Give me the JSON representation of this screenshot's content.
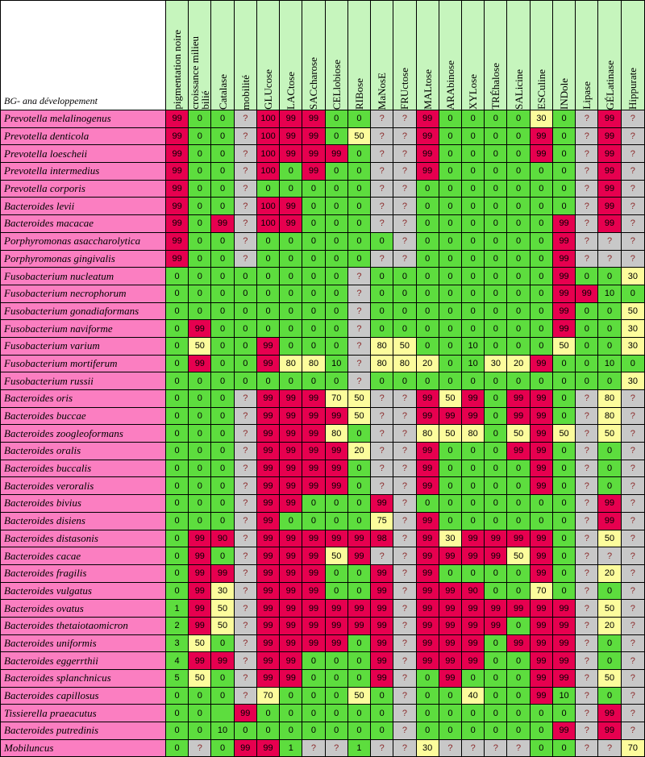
{
  "corner_label": "BG- ana développement",
  "columns": [
    "pigmentation noire",
    "croissance milieu\nbilié",
    "Catalase",
    "mobilité",
    "GLUcose",
    "LACtose",
    "SACcharose",
    "CELlobiose",
    "RIBose",
    "MaNosE",
    "FRUctose",
    "MALtose",
    "ARAbinose",
    "XYLose",
    "TRÉhalose",
    "SALicine",
    "ESCuline",
    "INDole",
    "Lipase",
    "GÉLatinase",
    "Hippurate"
  ],
  "colors": {
    "zero": "#5ddd3e",
    "high": "#e6004f",
    "mid": "#fcfc9c",
    "unknown": "#c8c8c8",
    "name": "#fb7ec1",
    "header": "#c6f5bd"
  },
  "rows": [
    {
      "name": "Prevotella melalinogenus",
      "values": [
        "99",
        "0",
        "0",
        "?",
        "100",
        "99",
        "99",
        "0",
        "0",
        "?",
        "?",
        "99",
        "0",
        "0",
        "0",
        "0",
        "30",
        "0",
        "?",
        "99",
        "?"
      ]
    },
    {
      "name": "Prevotella denticola",
      "values": [
        "99",
        "0",
        "0",
        "?",
        "100",
        "99",
        "99",
        "0",
        "50",
        "?",
        "?",
        "99",
        "0",
        "0",
        "0",
        "0",
        "99",
        "0",
        "?",
        "99",
        "?"
      ]
    },
    {
      "name": "Prevotella loescheii",
      "values": [
        "99",
        "0",
        "0",
        "?",
        "100",
        "99",
        "99",
        "99",
        "0",
        "?",
        "?",
        "99",
        "0",
        "0",
        "0",
        "0",
        "99",
        "0",
        "?",
        "99",
        "?"
      ]
    },
    {
      "name": "Prevotella intermedius",
      "values": [
        "99",
        "0",
        "0",
        "?",
        "100",
        "0",
        "99",
        "0",
        "0",
        "?",
        "?",
        "99",
        "0",
        "0",
        "0",
        "0",
        "0",
        "0",
        "?",
        "99",
        "?"
      ]
    },
    {
      "name": "Prevotella corporis",
      "values": [
        "99",
        "0",
        "0",
        "?",
        "0",
        "0",
        "0",
        "0",
        "0",
        "?",
        "?",
        "0",
        "0",
        "0",
        "0",
        "0",
        "0",
        "0",
        "?",
        "99",
        "?"
      ]
    },
    {
      "name": "Bacteroides levii",
      "values": [
        "99",
        "0",
        "0",
        "?",
        "100",
        "99",
        "0",
        "0",
        "0",
        "?",
        "?",
        "0",
        "0",
        "0",
        "0",
        "0",
        "0",
        "0",
        "?",
        "99",
        "?"
      ]
    },
    {
      "name": "Bacteroides macacae",
      "values": [
        "99",
        "0",
        "99",
        "?",
        "100",
        "99",
        "0",
        "0",
        "0",
        "?",
        "?",
        "0",
        "0",
        "0",
        "0",
        "0",
        "0",
        "99",
        "?",
        "99",
        "?"
      ]
    },
    {
      "name": "Porphyromonas asaccharolytica",
      "values": [
        "99",
        "0",
        "0",
        "?",
        "0",
        "0",
        "0",
        "0",
        "0",
        "0",
        "?",
        "0",
        "0",
        "0",
        "0",
        "0",
        "0",
        "99",
        "?",
        "?",
        "?"
      ]
    },
    {
      "name": "Porphyromonas gingivalis",
      "values": [
        "99",
        "0",
        "0",
        "?",
        "0",
        "0",
        "0",
        "0",
        "0",
        "?",
        "?",
        "0",
        "0",
        "0",
        "0",
        "0",
        "0",
        "99",
        "?",
        "?",
        "?"
      ]
    },
    {
      "name": "Fusobacterium nucleatum",
      "values": [
        "0",
        "0",
        "0",
        "0",
        "0",
        "0",
        "0",
        "0",
        "?",
        "0",
        "0",
        "0",
        "0",
        "0",
        "0",
        "0",
        "0",
        "99",
        "0",
        "0",
        "30"
      ]
    },
    {
      "name": "Fusobacterium necrophorum",
      "values": [
        "0",
        "0",
        "0",
        "0",
        "0",
        "0",
        "0",
        "0",
        "?",
        "0",
        "0",
        "0",
        "0",
        "0",
        "0",
        "0",
        "0",
        "99",
        "99",
        "10",
        "0"
      ]
    },
    {
      "name": "Fusobacterium gonadiaformans",
      "values": [
        "0",
        "0",
        "0",
        "0",
        "0",
        "0",
        "0",
        "0",
        "?",
        "0",
        "0",
        "0",
        "0",
        "0",
        "0",
        "0",
        "0",
        "99",
        "0",
        "0",
        "50"
      ]
    },
    {
      "name": "Fusobacterium naviforme",
      "values": [
        "0",
        "99",
        "0",
        "0",
        "0",
        "0",
        "0",
        "0",
        "?",
        "0",
        "0",
        "0",
        "0",
        "0",
        "0",
        "0",
        "0",
        "99",
        "0",
        "0",
        "30"
      ]
    },
    {
      "name": "Fusobacterium varium",
      "values": [
        "0",
        "50",
        "0",
        "0",
        "99",
        "0",
        "0",
        "0",
        "?",
        "80",
        "50",
        "0",
        "0",
        "10",
        "0",
        "0",
        "0",
        "50",
        "0",
        "0",
        "30"
      ]
    },
    {
      "name": "Fusobacterium mortiferum",
      "values": [
        "0",
        "99",
        "0",
        "0",
        "99",
        "80",
        "80",
        "10",
        "?",
        "80",
        "80",
        "20",
        "0",
        "10",
        "30",
        "20",
        "99",
        "0",
        "0",
        "10",
        "0"
      ]
    },
    {
      "name": "Fusobacterium russii",
      "values": [
        "0",
        "0",
        "0",
        "0",
        "0",
        "0",
        "0",
        "0",
        "?",
        "0",
        "0",
        "0",
        "0",
        "0",
        "0",
        "0",
        "0",
        "0",
        "0",
        "0",
        "30"
      ]
    },
    {
      "name": "Bacteroides oris",
      "values": [
        "0",
        "0",
        "0",
        "?",
        "99",
        "99",
        "99",
        "70",
        "50",
        "?",
        "?",
        "99",
        "50",
        "99",
        "0",
        "99",
        "99",
        "0",
        "?",
        "80",
        "?"
      ]
    },
    {
      "name": "Bacteroides buccae",
      "values": [
        "0",
        "0",
        "0",
        "?",
        "99",
        "99",
        "99",
        "99",
        "50",
        "?",
        "?",
        "99",
        "99",
        "99",
        "0",
        "99",
        "99",
        "0",
        "?",
        "80",
        "?"
      ]
    },
    {
      "name": "Bacteroides zoogleoformans",
      "values": [
        "0",
        "0",
        "0",
        "?",
        "99",
        "99",
        "99",
        "80",
        "0",
        "?",
        "?",
        "80",
        "50",
        "80",
        "0",
        "50",
        "99",
        "50",
        "?",
        "50",
        "?"
      ]
    },
    {
      "name": "Bacteroides oralis",
      "values": [
        "0",
        "0",
        "0",
        "?",
        "99",
        "99",
        "99",
        "99",
        "20",
        "?",
        "?",
        "99",
        "0",
        "0",
        "0",
        "99",
        "99",
        "0",
        "?",
        "0",
        "?"
      ]
    },
    {
      "name": "Bacteroides buccalis",
      "values": [
        "0",
        "0",
        "0",
        "?",
        "99",
        "99",
        "99",
        "99",
        "0",
        "?",
        "?",
        "99",
        "0",
        "0",
        "0",
        "0",
        "99",
        "0",
        "?",
        "0",
        "?"
      ]
    },
    {
      "name": "Bacteroides veroralis",
      "values": [
        "0",
        "0",
        "0",
        "?",
        "99",
        "99",
        "99",
        "99",
        "0",
        "?",
        "?",
        "99",
        "0",
        "0",
        "0",
        "0",
        "99",
        "0",
        "?",
        "0",
        "?"
      ]
    },
    {
      "name": "Bacteroides bivius",
      "values": [
        "0",
        "0",
        "0",
        "?",
        "99",
        "99",
        "0",
        "0",
        "0",
        "99",
        "?",
        "0",
        "0",
        "0",
        "0",
        "0",
        "0",
        "0",
        "?",
        "99",
        "?"
      ]
    },
    {
      "name": "Bacteroides disiens",
      "values": [
        "0",
        "0",
        "0",
        "?",
        "99",
        "0",
        "0",
        "0",
        "0",
        "75",
        "?",
        "99",
        "0",
        "0",
        "0",
        "0",
        "0",
        "0",
        "?",
        "99",
        "?"
      ]
    },
    {
      "name": "Bacteroides distasonis",
      "values": [
        "0",
        "99",
        "90",
        "?",
        "99",
        "99",
        "99",
        "99",
        "99",
        "98",
        "?",
        "99",
        "30",
        "99",
        "99",
        "99",
        "99",
        "0",
        "?",
        "50",
        "?"
      ]
    },
    {
      "name": "Bacteroides cacae",
      "values": [
        "0",
        "99",
        "0",
        "?",
        "99",
        "99",
        "99",
        "50",
        "99",
        "?",
        "?",
        "99",
        "99",
        "99",
        "99",
        "50",
        "99",
        "0",
        "?",
        "?",
        "?"
      ]
    },
    {
      "name": "Bacteroides fragilis",
      "values": [
        "0",
        "99",
        "99",
        "?",
        "99",
        "99",
        "99",
        "0",
        "0",
        "99",
        "?",
        "99",
        "0",
        "0",
        "0",
        "0",
        "99",
        "0",
        "?",
        "20",
        "?"
      ]
    },
    {
      "name": "Bacteroides vulgatus",
      "values": [
        "0",
        "99",
        "30",
        "?",
        "99",
        "99",
        "99",
        "0",
        "0",
        "99",
        "?",
        "99",
        "99",
        "90",
        "0",
        "0",
        "70",
        "0",
        "?",
        "0",
        "?"
      ]
    },
    {
      "name": "Bacteroides ovatus",
      "values": [
        "1",
        "99",
        "50",
        "?",
        "99",
        "99",
        "99",
        "99",
        "99",
        "99",
        "?",
        "99",
        "99",
        "99",
        "99",
        "99",
        "99",
        "99",
        "?",
        "50",
        "?"
      ]
    },
    {
      "name": "Bacteroides thetaiotaomicron",
      "values": [
        "2",
        "99",
        "50",
        "?",
        "99",
        "99",
        "99",
        "99",
        "99",
        "99",
        "?",
        "99",
        "99",
        "99",
        "99",
        "0",
        "99",
        "99",
        "?",
        "20",
        "?"
      ]
    },
    {
      "name": "Bacteroides uniformis",
      "values": [
        "3",
        "50",
        "0",
        "?",
        "99",
        "99",
        "99",
        "99",
        "0",
        "99",
        "?",
        "99",
        "99",
        "99",
        "0",
        "99",
        "99",
        "99",
        "?",
        "0",
        "?"
      ]
    },
    {
      "name": "Bacteroides eggerrthii",
      "values": [
        "4",
        "99",
        "99",
        "?",
        "99",
        "99",
        "0",
        "0",
        "0",
        "99",
        "?",
        "99",
        "99",
        "99",
        "0",
        "0",
        "99",
        "99",
        "?",
        "0",
        "?"
      ]
    },
    {
      "name": "Bacteroides splanchnicus",
      "values": [
        "5",
        "50",
        "0",
        "?",
        "99",
        "99",
        "0",
        "0",
        "0",
        "99",
        "?",
        "0",
        "99",
        "0",
        "0",
        "0",
        "99",
        "99",
        "?",
        "50",
        "?"
      ]
    },
    {
      "name": "Bacteroides capillosus",
      "values": [
        "0",
        "0",
        "0",
        "?",
        "70",
        "0",
        "0",
        "0",
        "50",
        "0",
        "?",
        "0",
        "0",
        "40",
        "0",
        "0",
        "99",
        "10",
        "?",
        "0",
        "?"
      ]
    },
    {
      "name": "Tissierella praeacutus",
      "values": [
        "0",
        "0",
        "",
        "99",
        "0",
        "0",
        "0",
        "0",
        "0",
        "0",
        "?",
        "0",
        "0",
        "0",
        "0",
        "0",
        "0",
        "0",
        "?",
        "99",
        "?"
      ]
    },
    {
      "name": "Bacteroides putredinis",
      "values": [
        "0",
        "0",
        "10",
        "0",
        "0",
        "0",
        "0",
        "0",
        "0",
        "0",
        "?",
        "0",
        "0",
        "0",
        "0",
        "0",
        "0",
        "99",
        "?",
        "99",
        "?"
      ]
    },
    {
      "name": "Mobiluncus",
      "values": [
        "0",
        "?",
        "0",
        "99",
        "99",
        "1",
        "?",
        "?",
        "1",
        "?",
        "?",
        "30",
        "?",
        "?",
        "?",
        "?",
        "0",
        "0",
        "?",
        "?",
        "70"
      ]
    }
  ]
}
